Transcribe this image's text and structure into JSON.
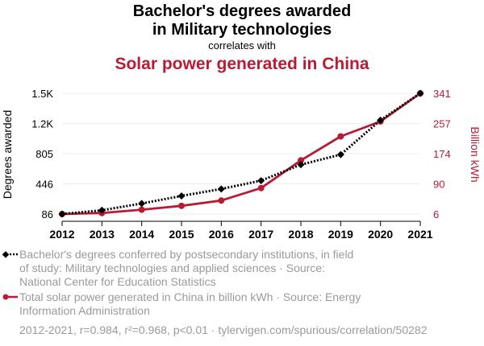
{
  "title_line1": "Bachelor's degrees awarded",
  "title_line2": "in Military technologies",
  "subtitle": "correlates with",
  "title2": "Solar power generated in China",
  "legend": [
    {
      "text": "Bachelor's degrees conferred by postsecondary institutions, in field of study: Military technologies and applied sciences · Source: National Center for Education Statistics",
      "color": "#000000"
    },
    {
      "text": "Total solar power generated in China in billion kWh · Source: Energy Information Administration",
      "color": "#b81b34"
    }
  ],
  "footer": "2012-2021, r=0.984, r²=0.968, p<0.01 · tylervigen.com/spurious/correlation/50282",
  "chart_data": {
    "type": "line",
    "x": [
      2012,
      2013,
      2014,
      2015,
      2016,
      2017,
      2018,
      2019,
      2020,
      2021
    ],
    "xtick_labels": [
      "2012",
      "2013",
      "2014",
      "2015",
      "2016",
      "2017",
      "2018",
      "2019",
      "2020",
      "2021"
    ],
    "left_axis": {
      "label": "Degrees awarded",
      "ticks": [
        86,
        446,
        805,
        1165,
        1525
      ],
      "tick_labels": [
        "86",
        "446",
        "805",
        "1.2K",
        "1.5K"
      ],
      "range": [
        86,
        1525
      ]
    },
    "right_axis": {
      "label": "Billion kWh",
      "ticks": [
        6,
        90,
        174,
        257,
        341
      ],
      "tick_labels": [
        "6",
        "90",
        "174",
        "257",
        "341"
      ],
      "range": [
        6,
        341
      ]
    },
    "series": [
      {
        "axis": "left",
        "color": "#000000",
        "style": "dotted",
        "marker": "diamond",
        "values": [
          86,
          131,
          212,
          302,
          385,
          484,
          675,
          795,
          1205,
          1525
        ]
      },
      {
        "axis": "right",
        "color": "#b81b34",
        "style": "solid",
        "marker": "circle",
        "values": [
          6.0,
          8.8,
          18.0,
          28.7,
          43.5,
          78.1,
          155.0,
          221.5,
          263.0,
          341.0
        ]
      }
    ]
  }
}
